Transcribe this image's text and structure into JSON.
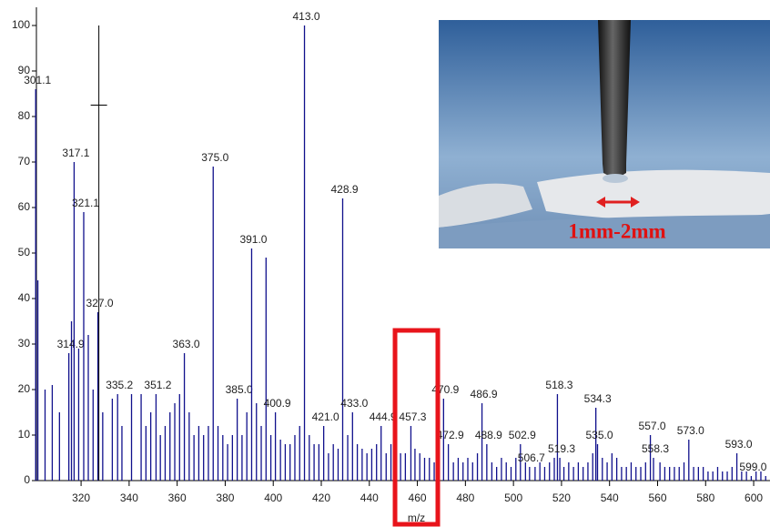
{
  "chart_data": {
    "type": "spectrum",
    "x_axis_label": "m/z",
    "xlim": [
      301.4,
      606.8
    ],
    "ylim": [
      0,
      104
    ],
    "xticks": [
      320,
      340,
      360,
      380,
      400,
      420,
      440,
      460,
      480,
      500,
      520,
      540,
      560,
      580,
      600
    ],
    "yticks": [
      0,
      10,
      20,
      30,
      40,
      50,
      60,
      70,
      80,
      90,
      100
    ],
    "color": "#10108c",
    "labeled_peaks": {
      "x": [
        301.1,
        314.9,
        317.1,
        321.1,
        327.0,
        335.2,
        351.2,
        363.0,
        375.0,
        385.0,
        391.0,
        400.9,
        413.0,
        421.0,
        428.9,
        433.0,
        444.9,
        457.3,
        470.9,
        472.9,
        486.9,
        488.9,
        502.9,
        506.7,
        518.3,
        519.3,
        534.3,
        535.0,
        557.0,
        558.3,
        573.0,
        593.0,
        599.0
      ],
      "x_labels": [
        "301.1",
        "314.9",
        "317.1",
        "321.1",
        "327.0",
        "335.2",
        "351.2",
        "363.0",
        "375.0",
        "385.0",
        "391.0",
        "400.9",
        "413.0",
        "421.0",
        "428.9",
        "433.0",
        "444.9",
        "457.3",
        "470.9",
        "472.9",
        "486.9",
        "488.9",
        "502.9",
        "506.7",
        "518.3",
        "519.3",
        "534.3",
        "535.0",
        "557.0",
        "558.3",
        "573.0",
        "593.0",
        "599.0"
      ],
      "values": [
        86,
        28,
        70,
        59,
        37,
        19,
        19,
        28,
        69,
        18,
        51,
        15,
        100,
        12,
        62,
        15,
        12,
        12,
        18,
        8,
        17,
        8,
        8,
        3,
        19,
        5,
        16,
        8,
        10,
        5,
        9,
        6,
        1
      ]
    },
    "peaks": {
      "x": [
        302,
        305,
        308,
        311,
        316,
        319,
        323,
        325,
        329,
        333,
        337,
        341,
        345,
        347,
        349,
        353,
        355,
        357,
        359,
        361,
        365,
        367,
        369,
        371,
        373,
        377,
        379,
        381,
        383,
        387,
        389,
        393,
        395,
        397,
        399,
        403,
        405,
        407,
        409,
        411,
        415,
        417,
        419,
        423,
        425,
        427,
        431,
        435,
        437,
        439,
        441,
        443,
        447,
        449,
        451,
        453,
        455,
        459,
        461,
        463,
        465,
        467,
        469,
        475,
        477,
        479,
        481,
        483,
        485,
        491,
        493,
        495,
        497,
        499,
        501,
        505,
        509,
        511,
        513,
        515,
        517,
        521,
        523,
        525,
        527,
        529,
        531,
        533,
        537,
        539,
        541,
        543,
        545,
        547,
        549,
        551,
        553,
        555,
        561,
        563,
        565,
        567,
        569,
        571,
        575,
        577,
        579,
        581,
        583,
        585,
        587,
        589,
        591,
        595,
        597,
        601,
        603,
        605
      ],
      "values": [
        44,
        20,
        21,
        15,
        35,
        29,
        32,
        20,
        15,
        18,
        12,
        19,
        19,
        12,
        15,
        10,
        12,
        15,
        17,
        19,
        15,
        10,
        12,
        10,
        12,
        12,
        10,
        8,
        10,
        10,
        15,
        17,
        12,
        49,
        10,
        9,
        8,
        8,
        10,
        12,
        10,
        8,
        8,
        6,
        8,
        7,
        10,
        8,
        7,
        6,
        7,
        8,
        6,
        8,
        11,
        6,
        6,
        7,
        6,
        5,
        5,
        4,
        9,
        4,
        5,
        4,
        5,
        4,
        6,
        4,
        3,
        5,
        4,
        3,
        5,
        4,
        3,
        4,
        3,
        4,
        5,
        3,
        4,
        3,
        4,
        3,
        4,
        6,
        5,
        4,
        6,
        5,
        3,
        3,
        4,
        3,
        3,
        4,
        4,
        3,
        3,
        3,
        3,
        4,
        3,
        3,
        3,
        2,
        2,
        3,
        2,
        2,
        3,
        2,
        2,
        2,
        2,
        1
      ]
    },
    "cursor": {
      "x": 327.4,
      "y": 82.5,
      "top": 100
    },
    "highlight": {
      "x": [
        450.7,
        468.5
      ],
      "top": 33
    }
  },
  "inset": {
    "label": "1mm-2mm"
  }
}
